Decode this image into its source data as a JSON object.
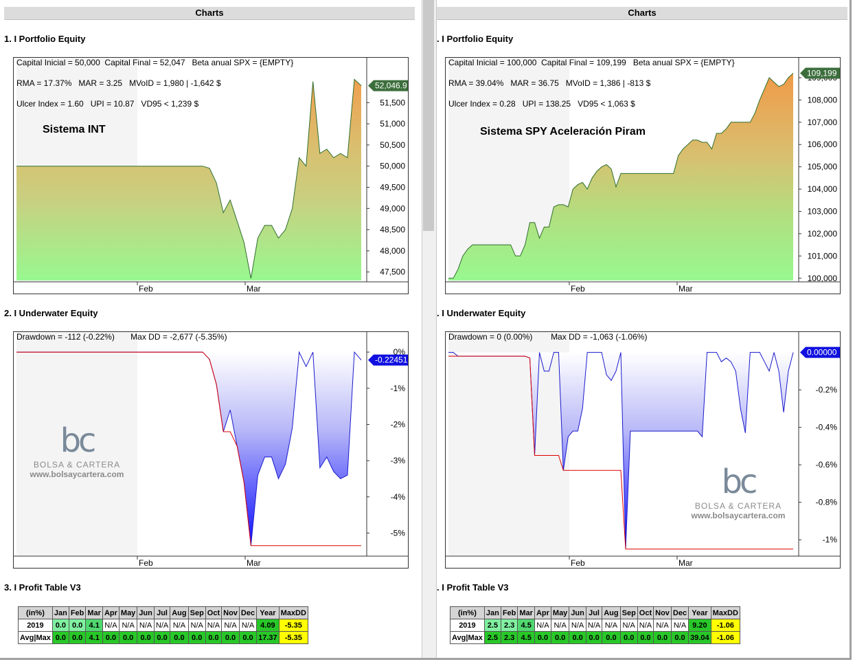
{
  "panels": [
    {
      "header": "Charts",
      "sections": {
        "equity_title": "1. I Portfolio Equity",
        "underwater_title": "2. I Underwater Equity",
        "profit_title": "3. I Profit Table V3"
      },
      "equity_info": [
        "Capital Inicial = 50,000  Capital Final = 52,047   Beta anual SPX = {EMPTY}",
        "RMA = 17.37%   MAR = 3.25   MVoID = 1,980 | -1,642 $",
        "Ulcer Index = 1.60   UPI = 10.87   VD95 < 1,239 $"
      ],
      "system_name": "Sistema INT",
      "equity_last_label": "52,046.9",
      "underwater_info": "Drawdown = -112 (-0.22%)       Max DD = -2,677 (-5.35%)",
      "underwater_last_label": "-0.22451",
      "watermark": {
        "logo": "bc",
        "name": "BOLSA & CARTERA",
        "url": "www.bolsaycartera.com"
      }
    },
    {
      "header": "Charts",
      "sections": {
        "equity_title": ". I Portfolio Equity",
        "underwater_title": ". I Underwater Equity",
        "profit_title": ". I Profit Table V3"
      },
      "equity_info": [
        "Capital Inicial = 100,000  Capital Final = 109,199   Beta anual SPX = {EMPTY}",
        "RMA = 39.04%   MAR = 36.75   MVoID = 1,386 | -813 $",
        "Ulcer Index = 0.28   UPI = 138.25   VD95 < 1,063 $"
      ],
      "system_name": "Sistema SPY Aceleración Piram",
      "equity_last_label": "109,199",
      "underwater_info": "Drawdown = 0 (0.00%)        Max DD = -1,063 (-1.06%)",
      "underwater_last_label": "0.00000",
      "watermark": {
        "logo": "bc",
        "name": "BOLSA & CARTERA",
        "url": "www.bolsaycartera.com"
      }
    }
  ],
  "profit_tables": [
    {
      "headers": [
        "(in%)",
        "Jan",
        "Feb",
        "Mar",
        "Apr",
        "May",
        "Jun",
        "Jul",
        "Aug",
        "Sep",
        "Oct",
        "Nov",
        "Dec",
        "Year",
        "MaxDD"
      ],
      "rows": [
        [
          "2019",
          "0.0",
          "0.0",
          "4.1",
          "N/A",
          "N/A",
          "N/A",
          "N/A",
          "N/A",
          "N/A",
          "N/A",
          "N/A",
          "N/A",
          "4.09",
          "-5.35"
        ],
        [
          "Avg|Max",
          "0.0",
          "0.0",
          "4.1",
          "0.0",
          "0.0",
          "0.0",
          "0.0",
          "0.0",
          "0.0",
          "0.0",
          "0.0",
          "0.0",
          "17.37",
          "-5.35"
        ]
      ]
    },
    {
      "headers": [
        "(in%)",
        "Jan",
        "Feb",
        "Mar",
        "Apr",
        "May",
        "Jun",
        "Jul",
        "Aug",
        "Sep",
        "Oct",
        "Nov",
        "Dec",
        "Year",
        "MaxDD"
      ],
      "rows": [
        [
          "2019",
          "2.5",
          "2.3",
          "4.5",
          "N/A",
          "N/A",
          "N/A",
          "N/A",
          "N/A",
          "N/A",
          "N/A",
          "N/A",
          "N/A",
          "9.20",
          "-1.06"
        ],
        [
          "Avg|Max",
          "2.5",
          "2.3",
          "4.5",
          "0.0",
          "0.0",
          "0.0",
          "0.0",
          "0.0",
          "0.0",
          "0.0",
          "0.0",
          "0.0",
          "39.04",
          "-1.06"
        ]
      ]
    }
  ],
  "chart_data": [
    {
      "type": "area",
      "chart": "equity-left",
      "x_ticks": [
        "Feb",
        "Mar"
      ],
      "y_ticks": [
        "47,500",
        "48,000",
        "48,500",
        "49,000",
        "49,500",
        "50,000",
        "50,500",
        "51,000",
        "51,500"
      ],
      "ylim": [
        47300,
        52300
      ],
      "values": [
        50000,
        50000,
        50000,
        50000,
        50000,
        50000,
        50000,
        50000,
        50000,
        50000,
        50000,
        50000,
        50000,
        50000,
        50000,
        50000,
        50000,
        50000,
        50000,
        50000,
        50000,
        50000,
        50000,
        50000,
        50000,
        50000,
        50000,
        50000,
        49950,
        49600,
        48900,
        49200,
        48700,
        48200,
        47350,
        48300,
        48600,
        48600,
        48300,
        48500,
        49000,
        50200,
        50000,
        52000,
        50300,
        50400,
        50200,
        50300,
        50200,
        52050,
        51900
      ]
    },
    {
      "type": "area",
      "chart": "equity-right",
      "x_ticks": [
        "Feb",
        "Mar"
      ],
      "y_ticks": [
        "100,000",
        "101,000",
        "102,000",
        "103,000",
        "104,000",
        "105,000",
        "106,000",
        "107,000",
        "108,000",
        "109,000"
      ],
      "ylim": [
        99900,
        109400
      ],
      "values": [
        100000,
        100000,
        100400,
        101000,
        101300,
        101500,
        101500,
        101500,
        101500,
        101500,
        101500,
        101500,
        101500,
        101500,
        101000,
        101000,
        101500,
        102500,
        102500,
        101800,
        102300,
        102300,
        103200,
        103300,
        103300,
        103200,
        104000,
        104200,
        104300,
        104000,
        104500,
        104800,
        105000,
        105100,
        104900,
        104100,
        104700,
        104700,
        104700,
        104700,
        104700,
        104700,
        104700,
        104700,
        104700,
        104700,
        104700,
        104700,
        105500,
        105800,
        106000,
        106200,
        106200,
        106100,
        106100,
        105800,
        106500,
        106500,
        106700,
        107000,
        107000,
        107000,
        107000,
        107000,
        107400,
        108000,
        108500,
        109000,
        108800,
        108600,
        108700,
        109000,
        109200
      ]
    },
    {
      "type": "area",
      "chart": "underwater-left",
      "x_ticks": [
        "Feb",
        "Mar"
      ],
      "y_ticks": [
        "0%",
        "-1%",
        "-2%",
        "-3%",
        "-4%",
        "-5%"
      ],
      "ylim": [
        -5.6,
        0.25
      ],
      "values": [
        0,
        0,
        0,
        0,
        0,
        0,
        0,
        0,
        0,
        0,
        0,
        0,
        0,
        0,
        0,
        0,
        0,
        0,
        0,
        0,
        0,
        0,
        0,
        0,
        0,
        0,
        0,
        0,
        -0.2,
        -0.9,
        -2.2,
        -1.6,
        -2.6,
        -3.6,
        -5.35,
        -3.4,
        -2.9,
        -2.9,
        -3.5,
        -3.1,
        -2.1,
        0,
        -0.4,
        0,
        -3.2,
        -2.9,
        -3.3,
        -3.5,
        -3.4,
        0,
        -0.22
      ],
      "max_dd": [
        0,
        0,
        0,
        0,
        0,
        0,
        0,
        0,
        0,
        0,
        0,
        0,
        0,
        0,
        0,
        0,
        0,
        0,
        0,
        0,
        0,
        0,
        0,
        0,
        0,
        0,
        0,
        0,
        -0.2,
        -0.9,
        -2.2,
        -2.2,
        -2.6,
        -3.6,
        -5.35,
        -5.35,
        -5.35,
        -5.35,
        -5.35,
        -5.35,
        -5.35,
        -5.35,
        -5.35,
        -5.35,
        -5.35,
        -5.35,
        -5.35,
        -5.35,
        -5.35,
        -5.35,
        -5.35
      ]
    },
    {
      "type": "area",
      "chart": "underwater-right",
      "x_ticks": [
        "Feb",
        "Mar"
      ],
      "y_ticks": [
        "-0.2%",
        "-0.4%",
        "-0.6%",
        "-0.8%",
        "-1%"
      ],
      "ylim": [
        -1.08,
        0.05
      ],
      "values": [
        0,
        0,
        -0.02,
        -0.02,
        -0.02,
        -0.02,
        -0.02,
        -0.02,
        -0.02,
        -0.02,
        -0.02,
        -0.02,
        -0.02,
        -0.02,
        -0.02,
        -0.02,
        -0.02,
        -0.03,
        -0.55,
        0,
        -0.1,
        -0.1,
        0,
        0,
        -0.63,
        -0.45,
        -0.42,
        -0.42,
        -0.3,
        0,
        0,
        0,
        0,
        -0.12,
        -0.15,
        -0.1,
        0,
        -1.05,
        -0.42,
        -0.42,
        -0.42,
        -0.42,
        -0.42,
        -0.42,
        -0.42,
        -0.42,
        -0.42,
        -0.42,
        -0.42,
        -0.42,
        -0.42,
        -0.42,
        -0.42,
        -0.45,
        0,
        0,
        0,
        -0.05,
        -0.03,
        -0.05,
        -0.1,
        -0.3,
        -0.43,
        0,
        0,
        0,
        -0.05,
        -0.1,
        0,
        -0.1,
        -0.32,
        -0.1,
        0
      ],
      "max_dd": [
        -0.02,
        -0.02,
        -0.02,
        -0.02,
        -0.02,
        -0.02,
        -0.02,
        -0.02,
        -0.02,
        -0.02,
        -0.02,
        -0.02,
        -0.02,
        -0.02,
        -0.02,
        -0.02,
        -0.02,
        -0.03,
        -0.55,
        -0.55,
        -0.55,
        -0.55,
        -0.55,
        -0.55,
        -0.63,
        -0.63,
        -0.63,
        -0.63,
        -0.63,
        -0.63,
        -0.63,
        -0.63,
        -0.63,
        -0.63,
        -0.63,
        -0.63,
        -0.63,
        -1.05,
        -1.05,
        -1.05,
        -1.05,
        -1.05,
        -1.05,
        -1.05,
        -1.05,
        -1.05,
        -1.05,
        -1.05,
        -1.05,
        -1.05,
        -1.05,
        -1.05,
        -1.05,
        -1.05,
        -1.05,
        -1.05,
        -1.05,
        -1.05,
        -1.05,
        -1.05,
        -1.05,
        -1.05,
        -1.05,
        -1.05,
        -1.05,
        -1.05,
        -1.05,
        -1.05,
        -1.05,
        -1.05,
        -1.05,
        -1.05,
        -1.05
      ]
    }
  ]
}
